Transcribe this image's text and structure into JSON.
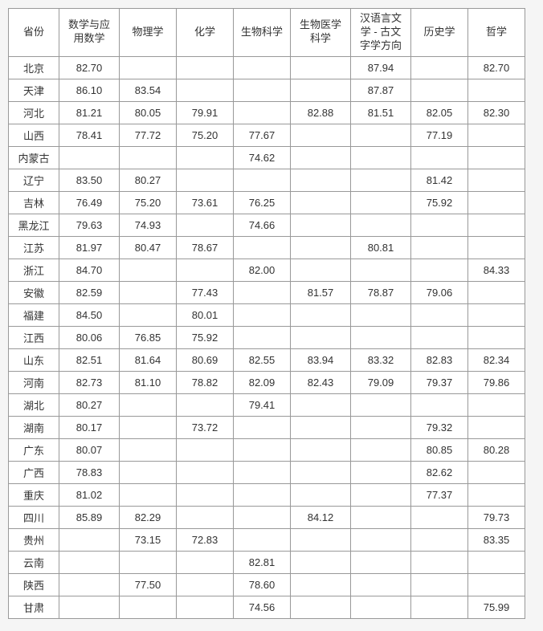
{
  "table": {
    "columns": [
      "省份",
      "数学与应用数学",
      "物理学",
      "化学",
      "生物科学",
      "生物医学科学",
      "汉语言文学 - 古文字学方向",
      "历史学",
      "哲学"
    ],
    "rows": [
      {
        "province": "北京",
        "vals": [
          "82.70",
          "",
          "",
          "",
          "",
          "87.94",
          "",
          "82.70"
        ]
      },
      {
        "province": "天津",
        "vals": [
          "86.10",
          "83.54",
          "",
          "",
          "",
          "87.87",
          "",
          ""
        ]
      },
      {
        "province": "河北",
        "vals": [
          "81.21",
          "80.05",
          "79.91",
          "",
          "82.88",
          "81.51",
          "82.05",
          "82.30"
        ]
      },
      {
        "province": "山西",
        "vals": [
          "78.41",
          "77.72",
          "75.20",
          "77.67",
          "",
          "",
          "77.19",
          ""
        ]
      },
      {
        "province": "内蒙古",
        "vals": [
          "",
          "",
          "",
          "74.62",
          "",
          "",
          "",
          ""
        ]
      },
      {
        "province": "辽宁",
        "vals": [
          "83.50",
          "80.27",
          "",
          "",
          "",
          "",
          "81.42",
          ""
        ]
      },
      {
        "province": "吉林",
        "vals": [
          "76.49",
          "75.20",
          "73.61",
          "76.25",
          "",
          "",
          "75.92",
          ""
        ]
      },
      {
        "province": "黑龙江",
        "vals": [
          "79.63",
          "74.93",
          "",
          "74.66",
          "",
          "",
          "",
          ""
        ]
      },
      {
        "province": "江苏",
        "vals": [
          "81.97",
          "80.47",
          "78.67",
          "",
          "",
          "80.81",
          "",
          ""
        ]
      },
      {
        "province": "浙江",
        "vals": [
          "84.70",
          "",
          "",
          "82.00",
          "",
          "",
          "",
          "84.33"
        ]
      },
      {
        "province": "安徽",
        "vals": [
          "82.59",
          "",
          "77.43",
          "",
          "81.57",
          "78.87",
          "79.06",
          ""
        ]
      },
      {
        "province": "福建",
        "vals": [
          "84.50",
          "",
          "80.01",
          "",
          "",
          "",
          "",
          ""
        ]
      },
      {
        "province": "江西",
        "vals": [
          "80.06",
          "76.85",
          "75.92",
          "",
          "",
          "",
          "",
          ""
        ]
      },
      {
        "province": "山东",
        "vals": [
          "82.51",
          "81.64",
          "80.69",
          "82.55",
          "83.94",
          "83.32",
          "82.83",
          "82.34"
        ]
      },
      {
        "province": "河南",
        "vals": [
          "82.73",
          "81.10",
          "78.82",
          "82.09",
          "82.43",
          "79.09",
          "79.37",
          "79.86"
        ]
      },
      {
        "province": "湖北",
        "vals": [
          "80.27",
          "",
          "",
          "79.41",
          "",
          "",
          "",
          ""
        ]
      },
      {
        "province": "湖南",
        "vals": [
          "80.17",
          "",
          "73.72",
          "",
          "",
          "",
          "79.32",
          ""
        ]
      },
      {
        "province": "广东",
        "vals": [
          "80.07",
          "",
          "",
          "",
          "",
          "",
          "80.85",
          "80.28"
        ]
      },
      {
        "province": "广西",
        "vals": [
          "78.83",
          "",
          "",
          "",
          "",
          "",
          "82.62",
          ""
        ]
      },
      {
        "province": "重庆",
        "vals": [
          "81.02",
          "",
          "",
          "",
          "",
          "",
          "77.37",
          ""
        ]
      },
      {
        "province": "四川",
        "vals": [
          "85.89",
          "82.29",
          "",
          "",
          "84.12",
          "",
          "",
          "79.73"
        ]
      },
      {
        "province": "贵州",
        "vals": [
          "",
          "73.15",
          "72.83",
          "",
          "",
          "",
          "",
          "83.35"
        ]
      },
      {
        "province": "云南",
        "vals": [
          "",
          "",
          "",
          "82.81",
          "",
          "",
          "",
          ""
        ]
      },
      {
        "province": "陕西",
        "vals": [
          "",
          "77.50",
          "",
          "78.60",
          "",
          "",
          "",
          ""
        ]
      },
      {
        "province": "甘肃",
        "vals": [
          "",
          "",
          "",
          "74.56",
          "",
          "",
          "",
          "75.99"
        ]
      }
    ],
    "styling": {
      "border_color": "#999999",
      "header_bg": "#ffffff",
      "cell_bg": "#ffffff",
      "font_size": 13,
      "text_color": "#333333"
    }
  }
}
